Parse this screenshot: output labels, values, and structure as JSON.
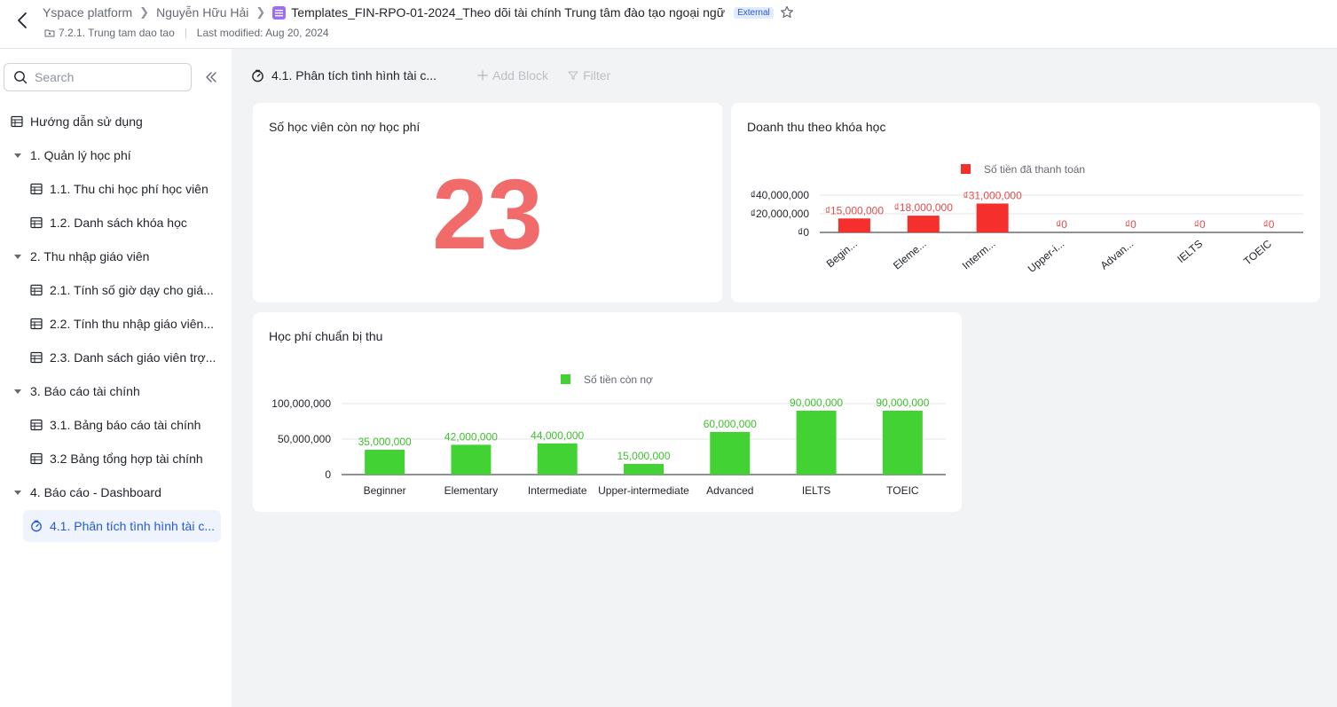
{
  "header": {
    "breadcrumbs": [
      "Yspace platform",
      "Nguyễn Hữu Hải"
    ],
    "current_doc": "Templates_FIN-RPO-01-2024_Theo dõi tài chính Trung tâm đào tạo ngoại ngữ",
    "badge": "External",
    "folder": "7.2.1. Trung tam dao tao",
    "last_modified": "Last modified: Aug 20, 2024"
  },
  "sidebar": {
    "search_placeholder": "Search",
    "items": [
      {
        "label": "Hướng dẫn sử dụng",
        "level": 0,
        "icon": "table-icon"
      },
      {
        "label": "1. Quản lý học phí",
        "level": 0,
        "icon": "caret-down-icon"
      },
      {
        "label": "1.1. Thu chi học phí học viên",
        "level": 1,
        "icon": "table-icon"
      },
      {
        "label": "1.2. Danh sách khóa học",
        "level": 1,
        "icon": "table-icon"
      },
      {
        "label": "2. Thu nhập giáo viên",
        "level": 0,
        "icon": "caret-down-icon"
      },
      {
        "label": "2.1. Tính số giờ dạy cho giá...",
        "level": 1,
        "icon": "table-icon"
      },
      {
        "label": "2.2. Tính thu nhập giáo viên...",
        "level": 1,
        "icon": "table-icon"
      },
      {
        "label": "2.3. Danh sách giáo viên trợ...",
        "level": 1,
        "icon": "table-icon"
      },
      {
        "label": "3. Báo cáo tài chính",
        "level": 0,
        "icon": "caret-down-icon"
      },
      {
        "label": "3.1. Bảng báo cáo tài chính",
        "level": 1,
        "icon": "table-icon"
      },
      {
        "label": "3.2 Bảng tổng hợp tài chính",
        "level": 1,
        "icon": "table-icon"
      },
      {
        "label": "4. Báo cáo - Dashboard",
        "level": 0,
        "icon": "caret-down-icon"
      },
      {
        "label": "4.1. Phân tích tình hình tài c...",
        "level": 1,
        "icon": "dashboard-icon",
        "active": true
      }
    ]
  },
  "toolbar": {
    "title": "4.1. Phân tích tình hình tài c...",
    "add_block": "Add Block",
    "filter": "Filter"
  },
  "cards": {
    "debt_count": {
      "title": "Số học viên còn nợ học phí",
      "value": "23",
      "color": "#f26b6b"
    }
  },
  "chart_data": [
    {
      "type": "bar",
      "title": "Doanh thu theo khóa học",
      "categories": [
        "Begin...",
        "Eleme...",
        "Interm...",
        "Upper-i...",
        "Advan...",
        "IELTS",
        "TOEIC"
      ],
      "series": [
        {
          "name": "Số tiền đã thanh toán",
          "values": [
            15000000,
            18000000,
            31000000,
            0,
            0,
            0,
            0
          ],
          "color": "#f5302c"
        }
      ],
      "data_labels": [
        "₫15,000,000",
        "₫18,000,000",
        "₫31,000,000",
        "₫0",
        "₫0",
        "₫0",
        "₫0"
      ],
      "yticks": [
        "₫0",
        "₫20,000,000",
        "₫40,000,000"
      ],
      "ytick_values": [
        0,
        20000000,
        40000000
      ],
      "ylim": [
        0,
        40000000
      ],
      "legend": "top-center",
      "grid": true,
      "label_color": "#e34d4a"
    },
    {
      "type": "bar",
      "title": "Học phí chuẩn bị thu",
      "categories": [
        "Beginner",
        "Elementary",
        "Intermediate",
        "Upper-intermediate",
        "Advanced",
        "IELTS",
        "TOEIC"
      ],
      "series": [
        {
          "name": "Số tiền còn nợ",
          "values": [
            35000000,
            42000000,
            44000000,
            15000000,
            60000000,
            90000000,
            90000000
          ],
          "color": "#43d233"
        }
      ],
      "data_labels": [
        "35,000,000",
        "42,000,000",
        "44,000,000",
        "15,000,000",
        "60,000,000",
        "90,000,000",
        "90,000,000"
      ],
      "yticks": [
        "0",
        "50,000,000",
        "100,000,000"
      ],
      "ytick_values": [
        0,
        50000000,
        100000000
      ],
      "ylim": [
        0,
        100000000
      ],
      "legend": "top-center",
      "grid": true,
      "label_color": "#3fbf2c"
    }
  ]
}
